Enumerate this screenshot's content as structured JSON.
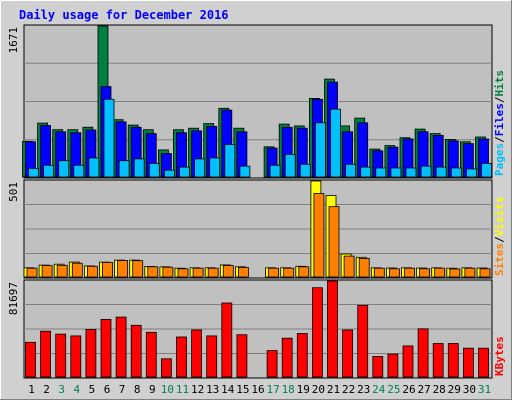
{
  "chart_data": {
    "type": "bar",
    "title": "Daily usage for December 2016",
    "x": [
      "1",
      "2",
      "3",
      "4",
      "5",
      "6",
      "7",
      "8",
      "9",
      "10",
      "11",
      "12",
      "13",
      "14",
      "15",
      "16",
      "17",
      "18",
      "19",
      "20",
      "21",
      "22",
      "23",
      "24",
      "25",
      "26",
      "27",
      "28",
      "29",
      "30",
      "31"
    ],
    "weekend_days": [
      "3",
      "4",
      "10",
      "11",
      "17",
      "18",
      "24",
      "25",
      "31"
    ],
    "panels": [
      {
        "name": "pages-files-hits",
        "ymax_label": "1671",
        "ylim": [
          0,
          1671
        ],
        "axis_label_parts": [
          "Pages",
          "/",
          "Files",
          "/",
          "Hits"
        ],
        "series": [
          {
            "name": "Hits",
            "color": "#008040",
            "values": [
              395,
              597,
              523,
              523,
              551,
              1671,
              634,
              574,
              523,
              300,
              523,
              540,
              591,
              760,
              540,
              0,
              334,
              585,
              566,
              870,
              1083,
              565,
              652,
              309,
              347,
              435,
              530,
              480,
              416,
              390,
              443
            ]
          },
          {
            "name": "Files",
            "color": "#0000ff",
            "values": [
              390,
              570,
              500,
              490,
              520,
              1000,
              610,
              550,
              480,
              260,
              490,
              510,
              560,
              740,
              500,
              0,
              320,
              550,
              540,
              860,
              1050,
              500,
              600,
              290,
              330,
              420,
              500,
              460,
              400,
              370,
              420
            ]
          },
          {
            "name": "Pages",
            "color": "#00c0ff",
            "values": [
              95,
              130,
              180,
              130,
              210,
              860,
              180,
              200,
              150,
              75,
              110,
              200,
              210,
              360,
              120,
              0,
              130,
              250,
              140,
              600,
              750,
              140,
              110,
              100,
              100,
              100,
              120,
              110,
              100,
              90,
              150
            ]
          }
        ]
      },
      {
        "name": "visits-sites",
        "ymax_label": "501",
        "ylim": [
          0,
          501
        ],
        "axis_label_parts": [
          "Sites",
          "/",
          "Visits"
        ],
        "series": [
          {
            "name": "Visits",
            "color": "#ffff00",
            "values": [
              48,
              62,
              67,
              78,
              58,
              78,
              88,
              88,
              55,
              53,
              46,
              48,
              48,
              63,
              53,
              0,
              48,
              48,
              56,
              501,
              425,
              120,
              103,
              48,
              47,
              48,
              47,
              48,
              46,
              48,
              47
            ]
          },
          {
            "name": "Sites",
            "color": "#ff8000",
            "values": [
              46,
              60,
              61,
              72,
              56,
              76,
              86,
              85,
              53,
              51,
              43,
              46,
              46,
              60,
              50,
              0,
              46,
              46,
              53,
              435,
              367,
              109,
              97,
              46,
              43,
              46,
              43,
              46,
              42,
              46,
              43
            ]
          }
        ]
      },
      {
        "name": "kbytes",
        "ymax_label": "81697",
        "ylim": [
          0,
          81697
        ],
        "axis_label_parts": [
          "KBytes"
        ],
        "series": [
          {
            "name": "KBytes",
            "color": "#ff0000",
            "values": [
              29500,
              39000,
              36500,
              35000,
              40500,
              49000,
              51000,
              44000,
              38000,
              15500,
              34000,
              40000,
              35000,
              63000,
              36000,
              0,
              22500,
              33000,
              37000,
              76000,
              81697,
              40000,
              61000,
              17500,
              19500,
              26500,
              41000,
              28500,
              28500,
              24500,
              24500
            ]
          }
        ]
      }
    ]
  },
  "colors": {
    "background": "#ffffff",
    "frame": "#d0d0d0",
    "plot": "#c0c0c0",
    "title": "#0000ff",
    "weekday_label": "#000000",
    "weekend_label": "#00805c",
    "slash": "#000000"
  }
}
